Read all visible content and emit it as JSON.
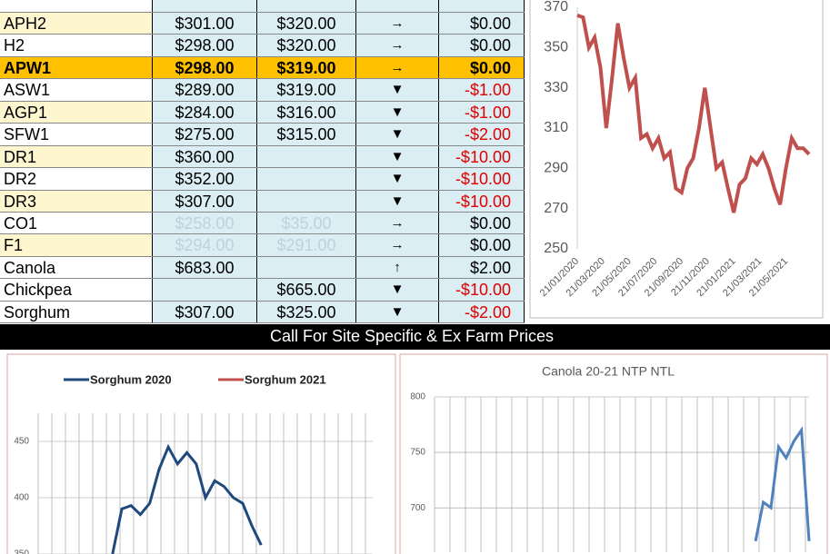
{
  "table": {
    "rows": [
      {
        "cells": [
          "APH2",
          "$301.00",
          "$320.00",
          "→",
          "$0.00"
        ],
        "shade": true
      },
      {
        "cells": [
          "H2",
          "$298.00",
          "$320.00",
          "→",
          "$0.00"
        ]
      },
      {
        "cells": [
          "APW1",
          "$298.00",
          "$319.00",
          "→",
          "$0.00"
        ],
        "highlight": true
      },
      {
        "cells": [
          "ASW1",
          "$289.00",
          "$319.00",
          "▼",
          "-$1.00"
        ]
      },
      {
        "cells": [
          "AGP1",
          "$284.00",
          "$316.00",
          "▼",
          "-$1.00"
        ],
        "shade": true
      },
      {
        "cells": [
          "SFW1",
          "$275.00",
          "$315.00",
          "▼",
          "-$2.00"
        ]
      },
      {
        "cells": [
          "DR1",
          "$360.00",
          "",
          "▼",
          "-$10.00"
        ],
        "shade": true
      },
      {
        "cells": [
          "DR2",
          "$352.00",
          "",
          "▼",
          "-$10.00"
        ]
      },
      {
        "cells": [
          "DR3",
          "$307.00",
          "",
          "▼",
          "-$10.00"
        ],
        "shade": true
      },
      {
        "cells": [
          "CO1",
          "$258.00",
          "$35.00",
          "→",
          "$0.00"
        ],
        "faded": true
      },
      {
        "cells": [
          "F1",
          "$294.00",
          "$291.00",
          "→",
          "$0.00"
        ],
        "shade": true,
        "faded": true
      },
      {
        "cells": [
          "Canola",
          "$683.00",
          "",
          "↑",
          "$2.00"
        ]
      },
      {
        "cells": [
          "Chickpea",
          "",
          "$665.00",
          "▼",
          "-$10.00"
        ]
      },
      {
        "cells": [
          "Sorghum",
          "$307.00",
          "$325.00",
          "▼",
          "-$2.00"
        ]
      }
    ],
    "caption": "Call For Site Specific & Ex Farm Prices"
  },
  "chart_data": [
    {
      "type": "line",
      "ylim": [
        250,
        370
      ],
      "yticks": [
        250,
        270,
        290,
        310,
        330,
        350,
        370
      ],
      "xlabels": [
        "21/01/2020",
        "21/03/2020",
        "21/05/2020",
        "21/07/2020",
        "21/09/2020",
        "21/11/2020",
        "21/01/2021",
        "21/03/2021",
        "21/05/2021"
      ],
      "series": [
        {
          "color": "#c0504d",
          "values": [
            366,
            365,
            350,
            355,
            340,
            310,
            335,
            362,
            345,
            330,
            335,
            305,
            307,
            300,
            305,
            295,
            298,
            280,
            278,
            290,
            295,
            310,
            330,
            310,
            290,
            293,
            280,
            268,
            282,
            285,
            295,
            292,
            297,
            290,
            280,
            272,
            290,
            305,
            300,
            300,
            297
          ]
        }
      ]
    },
    {
      "type": "line",
      "ylim": [
        350,
        475
      ],
      "yticks": [
        350,
        400,
        450
      ],
      "series": [
        {
          "name": "Sorghum 2020",
          "color": "#1f497d",
          "values": [
            null,
            null,
            null,
            null,
            null,
            null,
            null,
            null,
            350,
            390,
            393,
            385,
            395,
            425,
            445,
            430,
            440,
            430,
            400,
            415,
            410,
            400,
            395,
            375,
            358,
            null,
            null,
            null,
            null,
            null,
            null,
            null,
            null,
            null,
            null,
            null,
            null
          ]
        },
        {
          "name": "Sorghum 2021",
          "color": "#c0504d",
          "values": [
            null,
            null,
            null,
            null,
            null,
            null,
            null,
            null,
            null,
            null,
            null,
            null,
            null,
            null,
            null,
            null,
            null,
            null,
            null,
            null,
            null,
            null,
            null,
            null,
            null,
            null,
            null,
            null,
            null,
            null,
            null,
            null,
            null,
            null,
            null,
            null,
            null
          ]
        }
      ]
    },
    {
      "type": "line",
      "title": "Canola 20-21 NTP NTL",
      "ylim": [
        660,
        800
      ],
      "yticks": [
        700,
        750,
        800
      ],
      "series": [
        {
          "color": "#4f81bd",
          "values": [
            null,
            null,
            null,
            null,
            null,
            null,
            null,
            null,
            null,
            null,
            null,
            null,
            null,
            null,
            null,
            null,
            null,
            null,
            null,
            null,
            null,
            null,
            null,
            null,
            null,
            null,
            null,
            null,
            null,
            null,
            null,
            null,
            null,
            null,
            null,
            null,
            null,
            null,
            null,
            null,
            null,
            null,
            670,
            705,
            700,
            755,
            745,
            760,
            770,
            670
          ]
        }
      ]
    }
  ]
}
